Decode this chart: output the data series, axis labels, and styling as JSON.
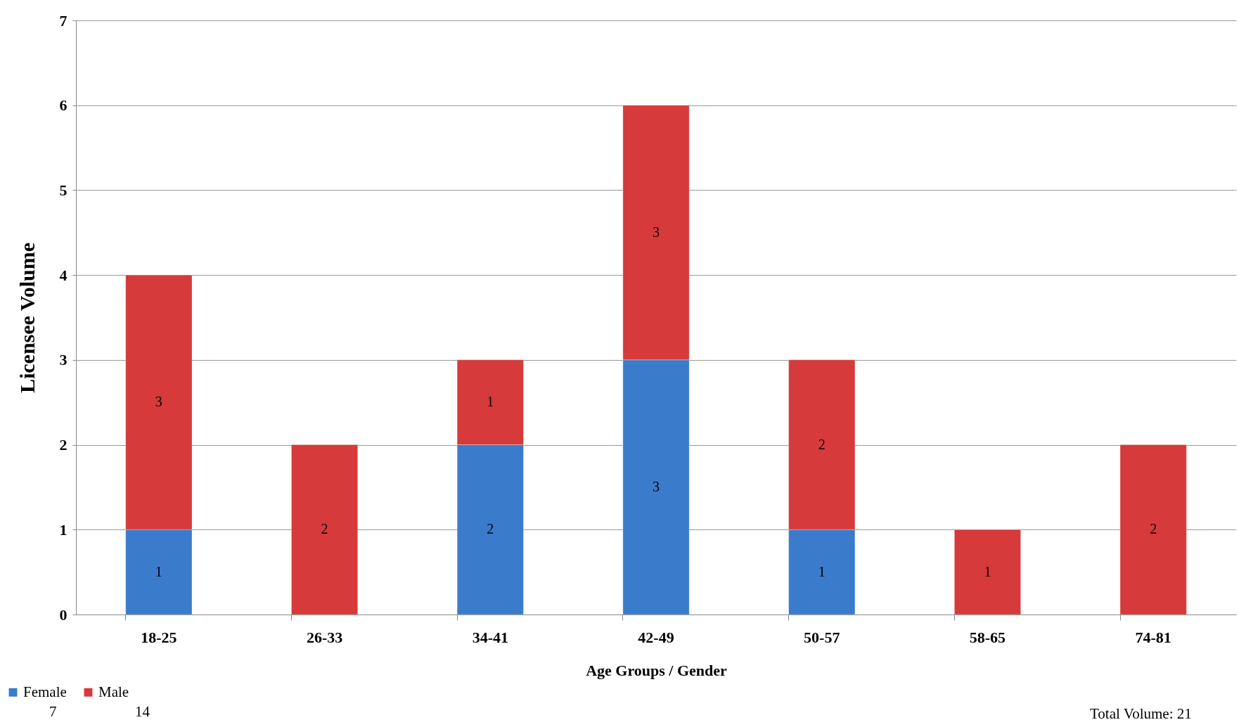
{
  "chart_data": {
    "type": "bar",
    "stacked": true,
    "xlabel": "Age Groups / Gender",
    "ylabel": "Licensee  Volume",
    "categories": [
      "18-25",
      "26-33",
      "34-41",
      "42-49",
      "50-57",
      "58-65",
      "74-81"
    ],
    "series": [
      {
        "name": "Female",
        "color": "#3b7bcc",
        "values": [
          1,
          null,
          2,
          3,
          1,
          null,
          null
        ]
      },
      {
        "name": "Male",
        "color": "#d63a3a",
        "values": [
          3,
          2,
          1,
          3,
          2,
          1,
          2
        ]
      }
    ],
    "ylim": [
      0,
      7
    ],
    "yticks": [
      0,
      1,
      2,
      3,
      4,
      5,
      6,
      7
    ],
    "grid": "y",
    "legend": "bottom left",
    "data_labels": true,
    "annotations": [
      "7",
      "14",
      "Total Volume: 21"
    ]
  }
}
